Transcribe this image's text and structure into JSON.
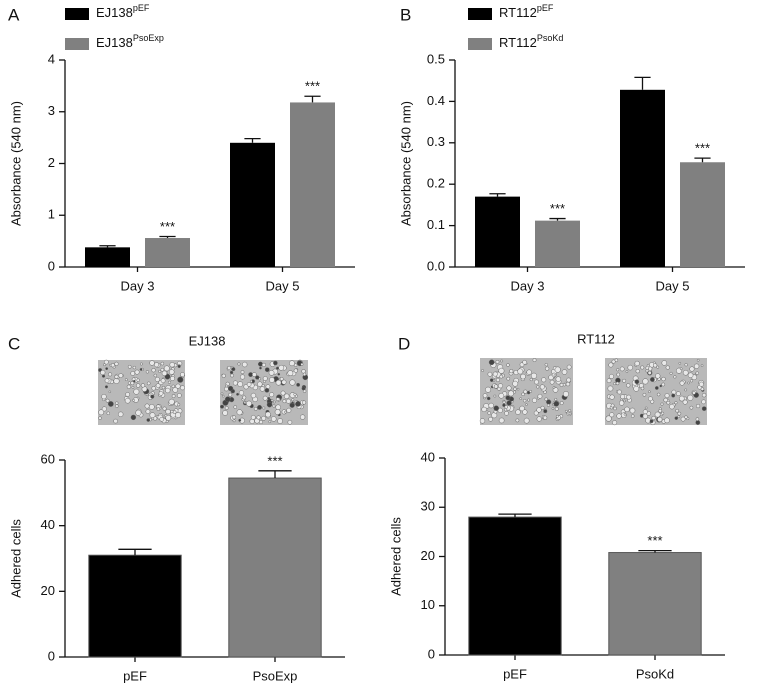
{
  "chart_data": [
    {
      "type": "bar",
      "panel": "A",
      "ylabel": "Absorbance (540 nm)",
      "categories": [
        "Day 3",
        "Day 5"
      ],
      "series": [
        {
          "name": "EJ138",
          "name_superscript": "pEF",
          "color": "#000000",
          "values": [
            0.38,
            2.4
          ],
          "errors": [
            0.03,
            0.08
          ],
          "significance": [
            null,
            null
          ]
        },
        {
          "name": "EJ138",
          "name_superscript": "PsoExp",
          "color": "#808080",
          "values": [
            0.56,
            3.18
          ],
          "errors": [
            0.03,
            0.12
          ],
          "significance": [
            "***",
            "***"
          ]
        }
      ],
      "ylim": [
        0,
        4
      ],
      "yticks": [
        0,
        1,
        2,
        3,
        4
      ]
    },
    {
      "type": "bar",
      "panel": "B",
      "ylabel": "Absorbance (540 nm)",
      "categories": [
        "Day 3",
        "Day 5"
      ],
      "series": [
        {
          "name": "RT112",
          "name_superscript": "pEF",
          "color": "#000000",
          "values": [
            0.17,
            0.428
          ],
          "errors": [
            0.007,
            0.03
          ],
          "significance": [
            null,
            null
          ]
        },
        {
          "name": "RT112",
          "name_superscript": "PsoKd",
          "color": "#808080",
          "values": [
            0.112,
            0.253
          ],
          "errors": [
            0.005,
            0.01
          ],
          "significance": [
            "***",
            "***"
          ]
        }
      ],
      "ylim": [
        0,
        0.5
      ],
      "yticks": [
        {
          "value": 0,
          "label": "0.0"
        },
        0.1,
        0.2,
        0.3,
        0.4,
        0.5
      ]
    },
    {
      "type": "bar",
      "panel": "C",
      "title": "EJ138",
      "ylabel": "Adhered cells",
      "categories": [
        "pEF",
        "PsoExp"
      ],
      "values": [
        31,
        54.5
      ],
      "errors": [
        1.8,
        2.2
      ],
      "colors": [
        "#000000",
        "#808080"
      ],
      "significance": [
        null,
        "***"
      ],
      "ylim": [
        0,
        60
      ],
      "yticks": [
        0,
        20,
        40,
        60
      ]
    },
    {
      "type": "bar",
      "panel": "D",
      "title": "RT112",
      "ylabel": "Adhered cells",
      "categories": [
        "pEF",
        "PsoKd"
      ],
      "values": [
        28,
        20.8
      ],
      "errors": [
        0.6,
        0.4
      ],
      "colors": [
        "#000000",
        "#808080"
      ],
      "significance": [
        null,
        "***"
      ],
      "ylim": [
        0,
        40
      ],
      "yticks": [
        0,
        10,
        20,
        30,
        40
      ]
    }
  ]
}
